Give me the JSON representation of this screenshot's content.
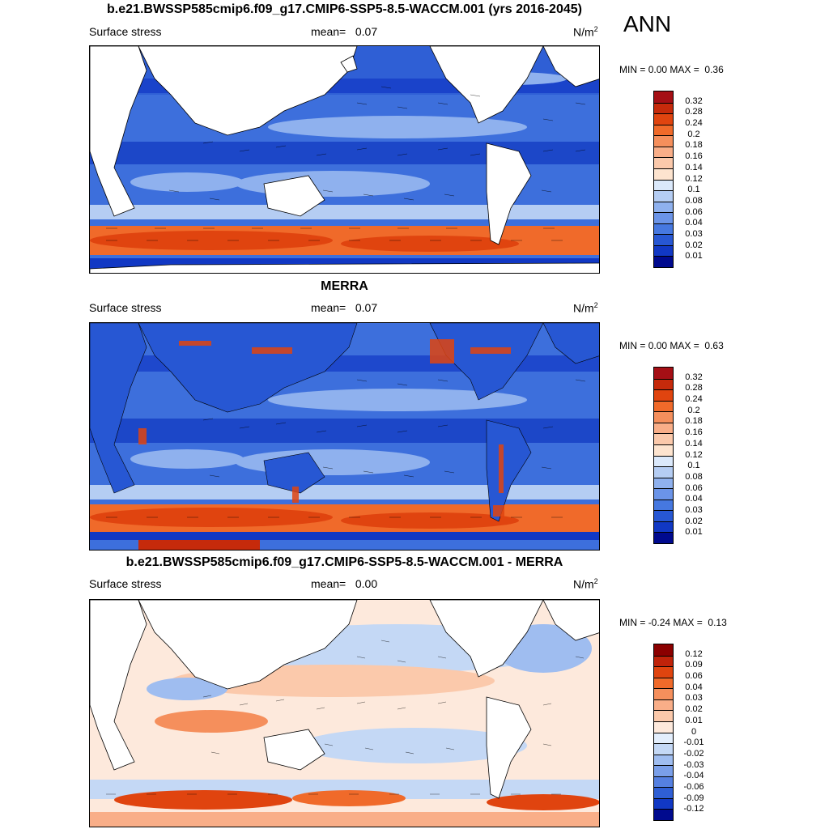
{
  "season": "ANN",
  "panels": [
    {
      "id": "model",
      "title": "b.e21.BWSSP585cmip6.f09_g17.CMIP6-SSP5-8.5-WACCM.001 (yrs 2016-2045)",
      "left_label": "Surface stress",
      "mean_label": "mean=",
      "mean_value": "0.07",
      "units_base": "N/m",
      "units_exp": "2",
      "min_label": "MIN =",
      "min_value": "0.00",
      "max_label": "MAX =",
      "max_value": "0.36",
      "colorbar": {
        "ticks": [
          "0.32",
          "0.28",
          "0.24",
          "0.2",
          "0.18",
          "0.16",
          "0.14",
          "0.12",
          "0.1",
          "0.08",
          "0.06",
          "0.04",
          "0.03",
          "0.02",
          "0.01"
        ],
        "colors": [
          "#a50f15",
          "#c62a0b",
          "#e0440f",
          "#f06a2a",
          "#f58f5c",
          "#f9ae88",
          "#fbc9ab",
          "#fde4cf",
          "#dbe9fb",
          "#b5cdf3",
          "#8fb1ee",
          "#6b94e8",
          "#4678e0",
          "#2757d3",
          "#1138c4",
          "#000a8e"
        ]
      }
    },
    {
      "id": "obs",
      "title": "MERRA",
      "left_label": "Surface stress",
      "mean_label": "mean=",
      "mean_value": "0.07",
      "units_base": "N/m",
      "units_exp": "2",
      "min_label": "MIN =",
      "min_value": "0.00",
      "max_label": "MAX =",
      "max_value": "0.63",
      "colorbar": {
        "ticks": [
          "0.32",
          "0.28",
          "0.24",
          "0.2",
          "0.18",
          "0.16",
          "0.14",
          "0.12",
          "0.1",
          "0.08",
          "0.06",
          "0.04",
          "0.03",
          "0.02",
          "0.01"
        ],
        "colors": [
          "#a50f15",
          "#c62a0b",
          "#e0440f",
          "#f06a2a",
          "#f58f5c",
          "#f9ae88",
          "#fbc9ab",
          "#fde4cf",
          "#dbe9fb",
          "#b5cdf3",
          "#8fb1ee",
          "#6b94e8",
          "#4678e0",
          "#2757d3",
          "#1138c4",
          "#000a8e"
        ]
      }
    },
    {
      "id": "diff",
      "title": "b.e21.BWSSP585cmip6.f09_g17.CMIP6-SSP5-8.5-WACCM.001 - MERRA",
      "left_label": "Surface stress",
      "mean_label": "mean=",
      "mean_value": "0.00",
      "units_base": "N/m",
      "units_exp": "2",
      "min_label": "MIN =",
      "min_value": "-0.24",
      "max_label": "MAX =",
      "max_value": "0.13",
      "colorbar": {
        "ticks": [
          "0.12",
          "0.09",
          "0.06",
          "0.04",
          "0.03",
          "0.02",
          "0.01",
          "0",
          "-0.01",
          "-0.02",
          "-0.03",
          "-0.04",
          "-0.06",
          "-0.09",
          "-0.12"
        ],
        "colors": [
          "#8b0000",
          "#c0230a",
          "#e0440f",
          "#f06a2a",
          "#f58f5c",
          "#f9ae88",
          "#fbc9ab",
          "#fde9dc",
          "#e3eefc",
          "#c4d8f5",
          "#9fbdf0",
          "#7a9fe9",
          "#5580e1",
          "#2f5fd5",
          "#1138c4",
          "#000a8e"
        ]
      }
    }
  ]
}
